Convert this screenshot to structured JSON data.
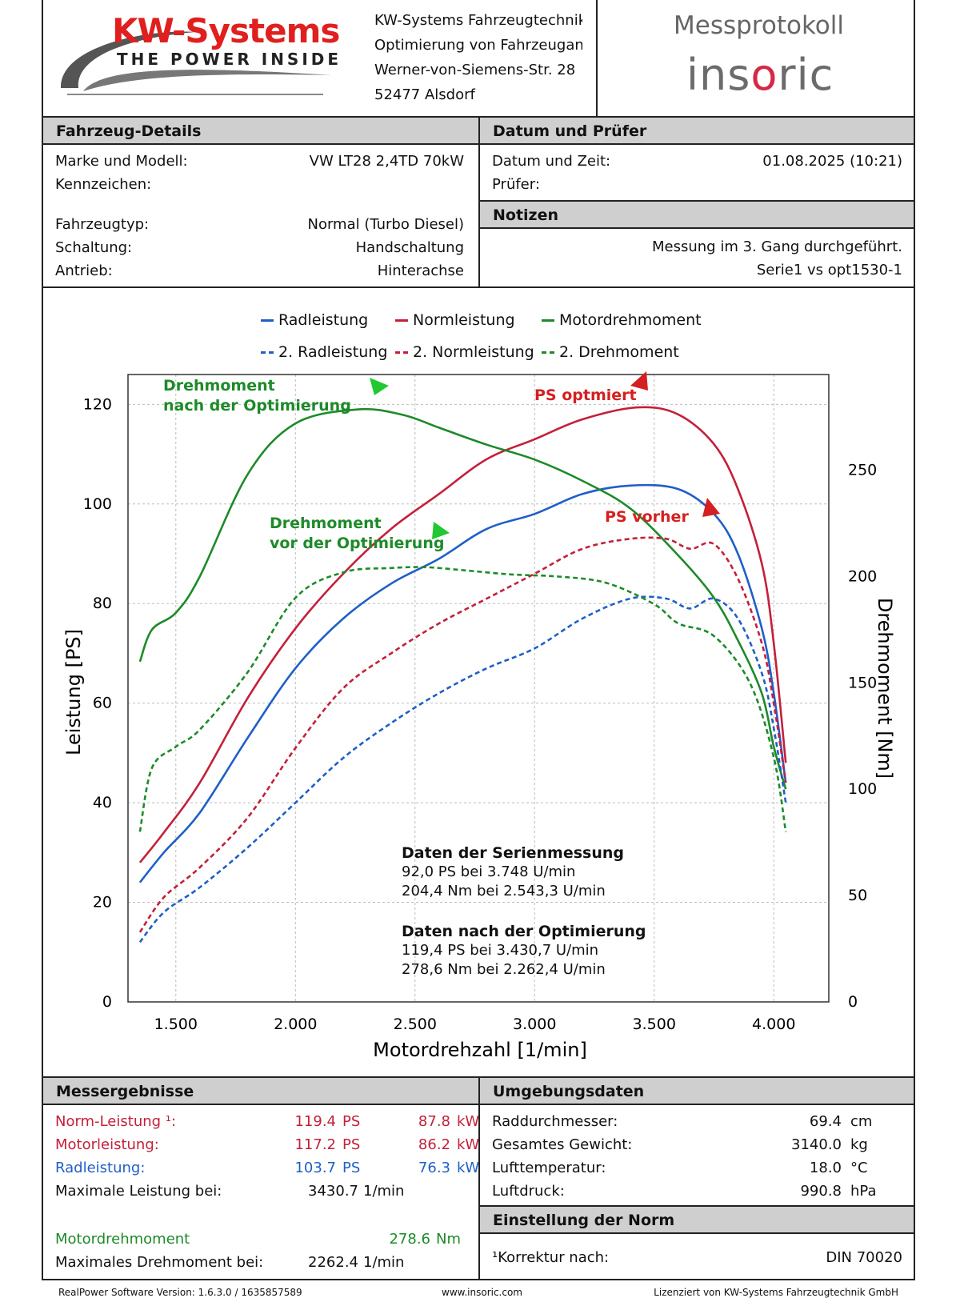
{
  "header": {
    "logo_title": "KW-Systems",
    "logo_subtitle": "THE POWER INSIDE",
    "address": [
      "KW-Systems Fahrzeugtechnik G",
      "Optimierung von Fahrzeugantr",
      "Werner-von-Siemens-Str. 28",
      "52477 Alsdorf"
    ],
    "protocol_title": "Messprotokoll",
    "brand": "insoric"
  },
  "vehicle": {
    "section_title": "Fahrzeug-Details",
    "rows": [
      {
        "label": "Marke und Modell:",
        "value": "VW LT28 2,4TD 70kW"
      },
      {
        "label": "Kennzeichen:",
        "value": ""
      },
      {
        "label": "Fahrzeugtyp:",
        "value": "Normal (Turbo Diesel)"
      },
      {
        "label": "Schaltung:",
        "value": "Handschaltung"
      },
      {
        "label": "Antrieb:",
        "value": "Hinterachse"
      }
    ]
  },
  "tester": {
    "section_title": "Datum und Prüfer",
    "rows": [
      {
        "label": "Datum und Zeit:",
        "value": "01.08.2025 (10:21)"
      },
      {
        "label": "Prüfer:",
        "value": ""
      }
    ]
  },
  "notes": {
    "section_title": "Notizen",
    "lines": [
      "Messung im 3. Gang durchgeführt.",
      "Serie1 vs opt1530-1"
    ]
  },
  "legend": [
    {
      "label": "Radleistung",
      "color": "#1f5fc8",
      "dashed": false
    },
    {
      "label": "Normleistung",
      "color": "#c4203a",
      "dashed": false
    },
    {
      "label": "Motordrehmoment",
      "color": "#1e8a2a",
      "dashed": false
    },
    {
      "label": "2. Radleistung",
      "color": "#1f5fc8",
      "dashed": true
    },
    {
      "label": "2. Normleistung",
      "color": "#c4203a",
      "dashed": true
    },
    {
      "label": "2. Drehmoment",
      "color": "#1e8a2a",
      "dashed": true
    }
  ],
  "annotations": {
    "torque_after": [
      "Drehmoment",
      "nach der Optimierung"
    ],
    "torque_before": [
      "Drehmoment",
      "vor der Optimierung"
    ],
    "ps_after": "PS optmiert",
    "ps_before": "PS vorher"
  },
  "stats": {
    "serial_title": "Daten der Serienmessung",
    "serial_lines": [
      "92,0 PS bei 3.748 U/min",
      "204,4 Nm bei 2.543,3 U/min"
    ],
    "opt_title": "Daten nach der Optimierung",
    "opt_lines": [
      "119,4 PS bei 3.430,7 U/min",
      "278,6 Nm bei 2.262,4 U/min"
    ]
  },
  "chart_data": {
    "type": "line",
    "xlabel": "Motordrehzahl [1/min]",
    "ylabel": "Leistung [PS]",
    "y2label": "Drehmoment [Nm]",
    "xlim": [
      1300,
      4230
    ],
    "ylim": [
      0,
      126
    ],
    "y2lim": [
      0,
      295
    ],
    "xticks": [
      "1.500",
      "2.000",
      "2.500",
      "3.000",
      "3.500",
      "4.000"
    ],
    "xtick_values": [
      1500,
      2000,
      2500,
      3000,
      3500,
      4000
    ],
    "yticks": [
      0,
      20,
      40,
      60,
      80,
      100,
      120
    ],
    "y2ticks": [
      0,
      50,
      100,
      150,
      200,
      250
    ],
    "grid": true,
    "series": [
      {
        "name": "Radleistung",
        "axis": "left",
        "color": "#1f5fc8",
        "dashed": false,
        "x": [
          1350,
          1450,
          1600,
          1800,
          2000,
          2200,
          2400,
          2600,
          2800,
          3000,
          3200,
          3400,
          3600,
          3750,
          3850,
          3950,
          4000,
          4050
        ],
        "y": [
          24,
          30,
          38,
          53,
          67,
          77,
          84,
          89,
          95,
          98,
          102,
          103.7,
          103,
          98,
          90,
          75,
          62,
          44
        ]
      },
      {
        "name": "Normleistung",
        "axis": "left",
        "color": "#c4203a",
        "dashed": false,
        "x": [
          1350,
          1450,
          1600,
          1800,
          2000,
          2200,
          2400,
          2600,
          2800,
          3000,
          3200,
          3430,
          3600,
          3750,
          3850,
          3950,
          4000,
          4050
        ],
        "y": [
          28,
          34,
          44,
          61,
          75,
          86,
          95,
          102,
          109,
          113,
          117,
          119.4,
          118,
          112,
          103,
          88,
          72,
          48
        ]
      },
      {
        "name": "Motordrehmoment",
        "axis": "right",
        "color": "#1e8a2a",
        "dashed": false,
        "x": [
          1350,
          1400,
          1500,
          1600,
          1800,
          2000,
          2262,
          2450,
          2600,
          2800,
          3000,
          3200,
          3400,
          3600,
          3750,
          3850,
          3950,
          4000,
          4050
        ],
        "y": [
          160,
          175,
          183,
          200,
          248,
          272,
          278.6,
          276,
          270,
          262,
          255,
          245,
          232,
          210,
          190,
          170,
          145,
          120,
          100
        ]
      },
      {
        "name": "2. Radleistung",
        "axis": "left",
        "color": "#1f5fc8",
        "dashed": true,
        "x": [
          1350,
          1450,
          1600,
          1800,
          2000,
          2200,
          2400,
          2600,
          2800,
          3000,
          3200,
          3400,
          3550,
          3650,
          3748,
          3850,
          3950,
          4000,
          4050
        ],
        "y": [
          12,
          18,
          23,
          31,
          40,
          49,
          56,
          62,
          67,
          71,
          77,
          81,
          81,
          79,
          81,
          77,
          66,
          55,
          40
        ]
      },
      {
        "name": "2. Normleistung",
        "axis": "left",
        "color": "#c4203a",
        "dashed": true,
        "x": [
          1350,
          1450,
          1600,
          1800,
          2000,
          2200,
          2400,
          2600,
          2800,
          3000,
          3200,
          3400,
          3550,
          3650,
          3748,
          3850,
          3950,
          4000,
          4050
        ],
        "y": [
          14,
          21,
          27,
          37,
          51,
          63,
          70,
          76,
          81,
          86,
          91,
          93,
          93,
          91,
          92,
          85,
          72,
          60,
          44
        ]
      },
      {
        "name": "2. Drehmoment",
        "axis": "right",
        "color": "#1e8a2a",
        "dashed": true,
        "x": [
          1350,
          1400,
          1500,
          1600,
          1800,
          2000,
          2200,
          2400,
          2543,
          2700,
          2900,
          3100,
          3300,
          3500,
          3600,
          3750,
          3900,
          4000,
          4050
        ],
        "y": [
          80,
          110,
          120,
          128,
          155,
          190,
          202,
          204,
          204.4,
          203,
          201,
          200,
          197,
          187,
          178,
          172,
          150,
          115,
          80
        ]
      }
    ]
  },
  "results": {
    "section_title": "Messergebnisse",
    "rows": [
      {
        "label": "Norm-Leistung ¹:",
        "ps": "119.4",
        "ps_unit": "PS",
        "kw": "87.8",
        "kw_unit": "kW",
        "color": "#c4203a"
      },
      {
        "label": "Motorleistung:",
        "ps": "117.2",
        "ps_unit": "PS",
        "kw": "86.2",
        "kw_unit": "kW",
        "color": "#c4203a"
      },
      {
        "label": "Radleistung:",
        "ps": "103.7",
        "ps_unit": "PS",
        "kw": "76.3",
        "kw_unit": "kW",
        "color": "#1f5fc8"
      }
    ],
    "max_power_label": "Maximale Leistung bei:",
    "max_power_value": "3430.7",
    "max_power_unit": "1/min",
    "torque_label": "Motordrehmoment",
    "torque_value": "278.6",
    "torque_unit": "Nm",
    "max_torque_label": "Maximales Drehmoment bei:",
    "max_torque_value": "2262.4",
    "max_torque_unit": "1/min"
  },
  "environment": {
    "section_title": "Umgebungsdaten",
    "rows": [
      {
        "label": "Raddurchmesser:",
        "value": "69.4",
        "unit": "cm"
      },
      {
        "label": "Gesamtes Gewicht:",
        "value": "3140.0",
        "unit": "kg"
      },
      {
        "label": "Lufttemperatur:",
        "value": "18.0",
        "unit": "°C"
      },
      {
        "label": "Luftdruck:",
        "value": "990.8",
        "unit": "hPa"
      }
    ]
  },
  "norm": {
    "section_title": "Einstellung der Norm",
    "label": "¹Korrektur nach:",
    "value": "DIN 70020"
  },
  "footer": {
    "left": "RealPower Software Version: 1.6.3.0 / 1635857589",
    "center": "www.insoric.com",
    "right": "Lizenziert von KW-Systems Fahrzeugtechnik GmbH"
  },
  "colors": {
    "red": "#c4203a",
    "blue": "#1f5fc8",
    "green": "#1e8a2a",
    "section_bg": "#cfcfcf"
  }
}
